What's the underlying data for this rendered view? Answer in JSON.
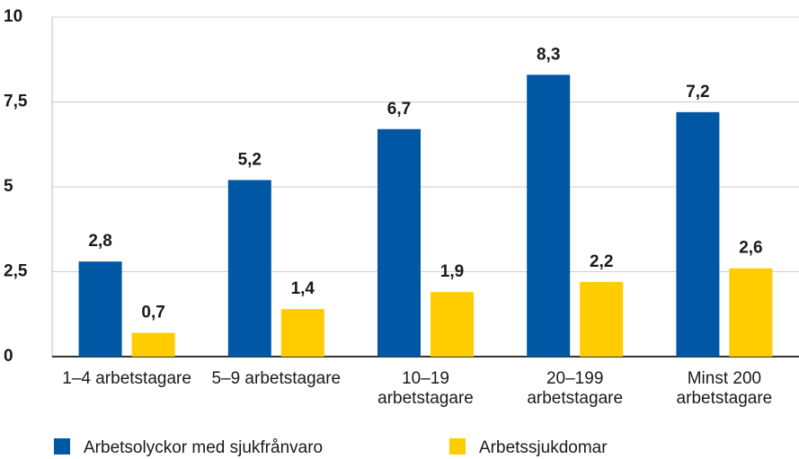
{
  "chart_data": {
    "type": "bar",
    "categories": [
      "1–4 arbetstagare",
      "5–9 arbetstagare",
      "10–19 arbetstagare",
      "20–199 arbetstagare",
      "Minst 200 arbetstagare"
    ],
    "series": [
      {
        "name": "Arbetsolyckor med sjukfrånvaro",
        "color": "#0057a4",
        "values": [
          2.8,
          5.2,
          6.7,
          8.3,
          7.2
        ],
        "value_labels": [
          "2,8",
          "5,2",
          "6,7",
          "8,3",
          "7,2"
        ]
      },
      {
        "name": "Arbetssjukdomar",
        "color": "#ffcc00",
        "values": [
          0.7,
          1.4,
          1.9,
          2.2,
          2.6
        ],
        "value_labels": [
          "0,7",
          "1,4",
          "1,9",
          "2,2",
          "2,6"
        ]
      }
    ],
    "ylim": [
      0,
      10
    ],
    "yticks": [
      0,
      {
        "value": 2.5,
        "label": "2,5"
      },
      5,
      {
        "value": 7.5,
        "label": "7,5"
      },
      10
    ],
    "grid": true
  }
}
